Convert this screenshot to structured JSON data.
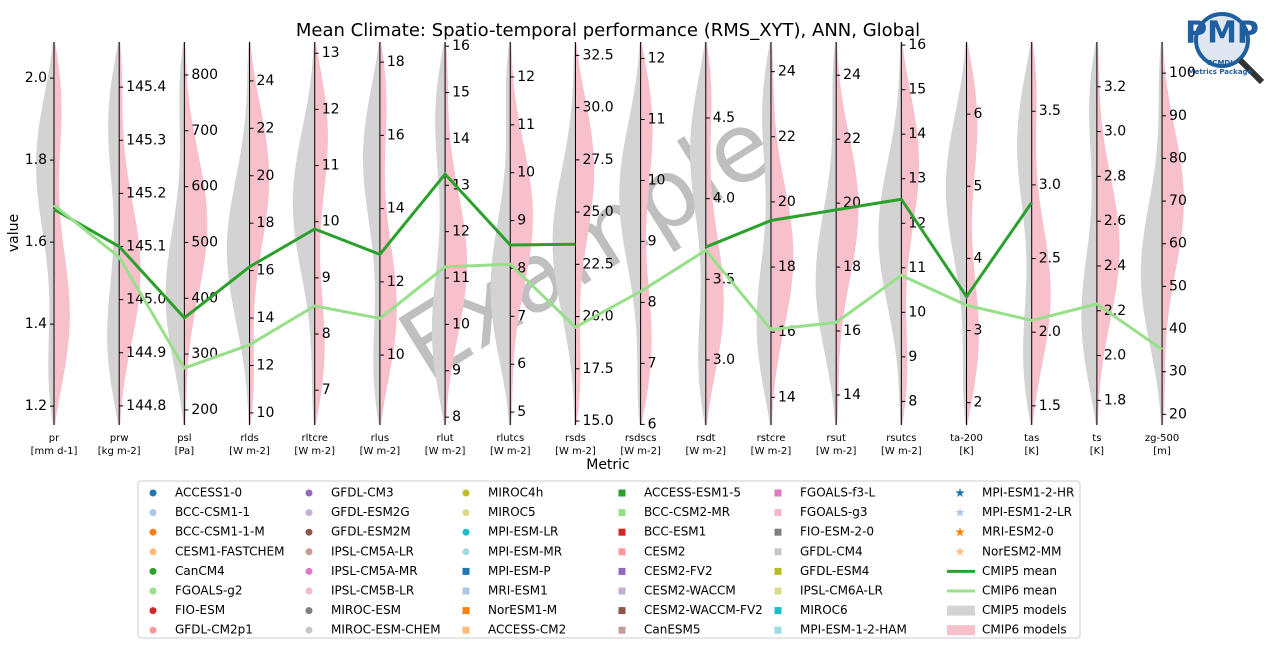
{
  "chart_data": {
    "type": "parallel_coordinates",
    "title": "Mean Climate: Spatio-temporal performance (RMS_XYT), ANN, Global",
    "watermark": "Example",
    "xlabel": "Metric",
    "ylabel": "value",
    "axes": [
      {
        "name": "pr",
        "unit": "[mm d-1]",
        "ylim": [
          1.154,
          2.088
        ],
        "yticks": [
          1.2,
          1.4,
          1.6,
          1.8,
          {
            "value": 2.0,
            "label": "2.0"
          }
        ]
      },
      {
        "name": "prw",
        "unit": "[kg m-2]",
        "ylim": [
          144.764,
          145.485
        ],
        "yticks": [
          144.8,
          144.9,
          {
            "value": 145.0,
            "label": "145.0"
          },
          145.1,
          145.2,
          145.3,
          145.4
        ]
      },
      {
        "name": "psl",
        "unit": "[Pa]",
        "ylim": [
          173,
          859
        ],
        "yticks": [
          200,
          300,
          400,
          500,
          600,
          700,
          800
        ]
      },
      {
        "name": "rlds",
        "unit": "[W m-2]",
        "ylim": [
          9.49,
          25.64
        ],
        "yticks": [
          10,
          12,
          14,
          16,
          18,
          20,
          22,
          24
        ]
      },
      {
        "name": "rltcre",
        "unit": "[W m-2]",
        "ylim": [
          6.38,
          13.2
        ],
        "yticks": [
          7,
          8,
          9,
          10,
          11,
          12,
          13
        ]
      },
      {
        "name": "rlus",
        "unit": "[W m-2]",
        "ylim": [
          8.09,
          18.55
        ],
        "yticks": [
          10,
          12,
          14,
          16,
          18
        ]
      },
      {
        "name": "rlut",
        "unit": "[W m-2]",
        "ylim": [
          7.83,
          16.09
        ],
        "yticks": [
          8,
          9,
          10,
          11,
          12,
          13,
          14,
          15,
          16
        ]
      },
      {
        "name": "rlutcs",
        "unit": "[W m-2]",
        "ylim": [
          4.73,
          12.73
        ],
        "yticks": [
          5,
          6,
          7,
          8,
          9,
          10,
          11,
          12
        ]
      },
      {
        "name": "rsds",
        "unit": "[W m-2]",
        "ylim": [
          14.81,
          33.14
        ],
        "yticks": [
          {
            "value": 15,
            "label": "15.0"
          },
          17.5,
          {
            "value": 20,
            "label": "20.0"
          },
          22.5,
          {
            "value": 25,
            "label": "25.0"
          },
          27.5,
          {
            "value": 30,
            "label": "30.0"
          },
          32.5
        ]
      },
      {
        "name": "rsdscs",
        "unit": "[W m-2]",
        "ylim": [
          5.99,
          12.27
        ],
        "yticks": [
          6,
          7,
          8,
          9,
          10,
          11,
          12
        ]
      },
      {
        "name": "rsdt",
        "unit": "[W m-2]",
        "ylim": [
          2.597,
          4.971
        ],
        "yticks": [
          {
            "value": 3,
            "label": "3.0"
          },
          3.5,
          {
            "value": 4,
            "label": "4.0"
          },
          4.5
        ]
      },
      {
        "name": "rstcre",
        "unit": "[W m-2]",
        "ylim": [
          13.15,
          24.91
        ],
        "yticks": [
          14,
          16,
          18,
          20,
          22,
          24
        ]
      },
      {
        "name": "rsut",
        "unit": "[W m-2]",
        "ylim": [
          13.06,
          25.04
        ],
        "yticks": [
          14,
          16,
          18,
          20,
          22,
          24
        ]
      },
      {
        "name": "rsutcs",
        "unit": "[W m-2]",
        "ylim": [
          7.47,
          16.07
        ],
        "yticks": [
          8,
          9,
          10,
          11,
          12,
          13,
          14,
          15,
          16
        ]
      },
      {
        "name": "ta-200",
        "unit": "[K]",
        "ylim": [
          1.69,
          7.0
        ],
        "yticks": [
          2,
          3,
          4,
          5,
          6
        ]
      },
      {
        "name": "tas",
        "unit": "[K]",
        "ylim": [
          1.37,
          3.97
        ],
        "yticks": [
          1.5,
          {
            "value": 2,
            "label": "2.0"
          },
          2.5,
          {
            "value": 3,
            "label": "3.0"
          },
          3.5
        ]
      },
      {
        "name": "ts",
        "unit": "[K]",
        "ylim": [
          1.69,
          3.4
        ],
        "yticks": [
          1.8,
          {
            "value": 2,
            "label": "2.0"
          },
          2.2,
          2.4,
          2.6,
          2.8,
          {
            "value": 3,
            "label": "3.0"
          },
          3.2
        ]
      },
      {
        "name": "zg-500",
        "unit": "[m]",
        "ylim": [
          17.5,
          107.3
        ],
        "yticks": [
          20,
          30,
          40,
          50,
          60,
          70,
          80,
          90,
          100
        ]
      }
    ],
    "series": [
      {
        "name": "CMIP5 mean",
        "color": "#2ca02c",
        "values": [
          1.68,
          145.1,
          365,
          16.16,
          9.87,
          12.75,
          13.24,
          8.49,
          23.46,
          null,
          3.7,
          19.43,
          19.79,
          12.54,
          3.47,
          2.88,
          null,
          null
        ]
      },
      {
        "name": "CMIP6 mean",
        "color": "#98df8a",
        "values": [
          1.69,
          145.08,
          275,
          12.87,
          8.5,
          11.0,
          11.24,
          8.09,
          19.49,
          8.18,
          3.68,
          16.08,
          16.27,
          10.83,
          3.35,
          2.08,
          2.23,
          35.2
        ]
      }
    ],
    "violins": [
      {
        "name": "CMIP5 models",
        "color": "#d3d3d3"
      },
      {
        "name": "CMIP6 models",
        "color": "#f7c0cb"
      }
    ],
    "models": [
      {
        "name": "ACCESS1-0",
        "color": "#1f77b4",
        "marker": "circle"
      },
      {
        "name": "BCC-CSM1-1",
        "color": "#aec7e8",
        "marker": "circle"
      },
      {
        "name": "BCC-CSM1-1-M",
        "color": "#ff7f0e",
        "marker": "circle"
      },
      {
        "name": "CESM1-FASTCHEM",
        "color": "#ffbb78",
        "marker": "circle"
      },
      {
        "name": "CanCM4",
        "color": "#2ca02c",
        "marker": "circle"
      },
      {
        "name": "FGOALS-g2",
        "color": "#98df8a",
        "marker": "circle"
      },
      {
        "name": "FIO-ESM",
        "color": "#d62728",
        "marker": "circle"
      },
      {
        "name": "GFDL-CM2p1",
        "color": "#ff9896",
        "marker": "circle"
      },
      {
        "name": "GFDL-CM3",
        "color": "#9467bd",
        "marker": "circle"
      },
      {
        "name": "GFDL-ESM2G",
        "color": "#c5b0d5",
        "marker": "circle"
      },
      {
        "name": "GFDL-ESM2M",
        "color": "#8c564b",
        "marker": "circle"
      },
      {
        "name": "IPSL-CM5A-LR",
        "color": "#c49c94",
        "marker": "circle"
      },
      {
        "name": "IPSL-CM5A-MR",
        "color": "#e377c2",
        "marker": "circle"
      },
      {
        "name": "IPSL-CM5B-LR",
        "color": "#f7b6d2",
        "marker": "circle"
      },
      {
        "name": "MIROC-ESM",
        "color": "#7f7f7f",
        "marker": "circle"
      },
      {
        "name": "MIROC-ESM-CHEM",
        "color": "#c7c7c7",
        "marker": "circle"
      },
      {
        "name": "MIROC4h",
        "color": "#bcbd22",
        "marker": "circle"
      },
      {
        "name": "MIROC5",
        "color": "#dbdb8d",
        "marker": "circle"
      },
      {
        "name": "MPI-ESM-LR",
        "color": "#17becf",
        "marker": "circle"
      },
      {
        "name": "MPI-ESM-MR",
        "color": "#9edae5",
        "marker": "circle"
      },
      {
        "name": "MPI-ESM-P",
        "color": "#1f77b4",
        "marker": "square"
      },
      {
        "name": "MRI-ESM1",
        "color": "#aec7e8",
        "marker": "square"
      },
      {
        "name": "NorESM1-M",
        "color": "#ff7f0e",
        "marker": "square"
      },
      {
        "name": "ACCESS-CM2",
        "color": "#ffbb78",
        "marker": "square"
      },
      {
        "name": "ACCESS-ESM1-5",
        "color": "#2ca02c",
        "marker": "square"
      },
      {
        "name": "BCC-CSM2-MR",
        "color": "#98df8a",
        "marker": "square"
      },
      {
        "name": "BCC-ESM1",
        "color": "#d62728",
        "marker": "square"
      },
      {
        "name": "CESM2",
        "color": "#ff9896",
        "marker": "square"
      },
      {
        "name": "CESM2-FV2",
        "color": "#9467bd",
        "marker": "square"
      },
      {
        "name": "CESM2-WACCM",
        "color": "#c5b0d5",
        "marker": "square"
      },
      {
        "name": "CESM2-WACCM-FV2",
        "color": "#8c564b",
        "marker": "square"
      },
      {
        "name": "CanESM5",
        "color": "#c49c94",
        "marker": "square"
      },
      {
        "name": "FGOALS-f3-L",
        "color": "#e377c2",
        "marker": "square"
      },
      {
        "name": "FGOALS-g3",
        "color": "#f7b6d2",
        "marker": "square"
      },
      {
        "name": "FIO-ESM-2-0",
        "color": "#7f7f7f",
        "marker": "square"
      },
      {
        "name": "GFDL-CM4",
        "color": "#c7c7c7",
        "marker": "square"
      },
      {
        "name": "GFDL-ESM4",
        "color": "#bcbd22",
        "marker": "square"
      },
      {
        "name": "IPSL-CM6A-LR",
        "color": "#dbdb8d",
        "marker": "square"
      },
      {
        "name": "MIROC6",
        "color": "#17becf",
        "marker": "square"
      },
      {
        "name": "MPI-ESM-1-2-HAM",
        "color": "#9edae5",
        "marker": "square"
      },
      {
        "name": "MPI-ESM1-2-HR",
        "color": "#1f77b4",
        "marker": "star"
      },
      {
        "name": "MPI-ESM1-2-LR",
        "color": "#aec7e8",
        "marker": "star"
      },
      {
        "name": "MRI-ESM2-0",
        "color": "#ff7f0e",
        "marker": "star"
      },
      {
        "name": "NorESM2-MM",
        "color": "#ffbb78",
        "marker": "star"
      }
    ]
  },
  "logo": {
    "title": "PMP",
    "line1": "PCMDI",
    "line2": "Metrics Package"
  }
}
